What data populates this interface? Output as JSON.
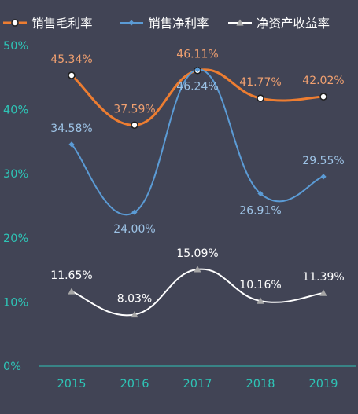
{
  "chart_data": {
    "type": "line",
    "categories": [
      "2015",
      "2016",
      "2017",
      "2018",
      "2019"
    ],
    "yticks": [
      "0%",
      "10%",
      "20%",
      "30%",
      "40%",
      "50%"
    ],
    "ylim": [
      0,
      50
    ],
    "legend_position": "top",
    "grid": false,
    "series": [
      {
        "name": "销售毛利率",
        "values": [
          45.34,
          37.59,
          46.11,
          41.77,
          42.02
        ],
        "labels": [
          "45.34%",
          "37.59%",
          "46.11%",
          "41.77%",
          "42.02%"
        ],
        "color": "#ED7D31",
        "label_color": "#F0A070",
        "marker": "circle"
      },
      {
        "name": "销售净利率",
        "values": [
          34.58,
          24.0,
          46.24,
          26.91,
          29.55
        ],
        "labels": [
          "34.58%",
          "24.00%",
          "46.24%",
          "26.91%",
          "29.55%"
        ],
        "color": "#5B9BD5",
        "label_color": "#9DC3E6",
        "marker": "diamond"
      },
      {
        "name": "净资产收益率",
        "values": [
          11.65,
          8.03,
          15.09,
          10.16,
          11.39
        ],
        "labels": [
          "11.65%",
          "8.03%",
          "15.09%",
          "10.16%",
          "11.39%"
        ],
        "color": "#FFFFFF",
        "label_color": "#FFFFFF",
        "marker": "triangle"
      }
    ],
    "axis_color": "#2EC4B6"
  }
}
